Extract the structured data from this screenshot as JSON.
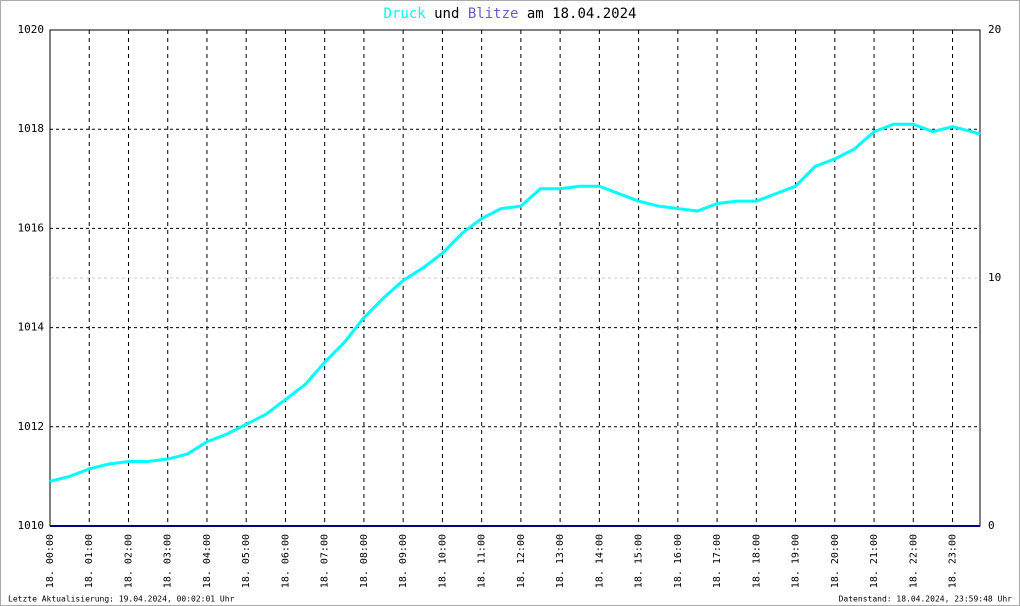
{
  "chart_data": {
    "type": "line",
    "title_parts": [
      {
        "text": "Druck",
        "color": "#00ffff"
      },
      {
        "text": "und",
        "color": "#000000"
      },
      {
        "text": "Blitze",
        "color": "#6a5acd"
      },
      {
        "text": "am 18.04.2024",
        "color": "#000000"
      }
    ],
    "xlim": [
      0,
      23.7
    ],
    "xticks": [
      {
        "value": 0,
        "label": "18. 00:00"
      },
      {
        "value": 1,
        "label": "18. 01:00"
      },
      {
        "value": 2,
        "label": "18. 02:00"
      },
      {
        "value": 3,
        "label": "18. 03:00"
      },
      {
        "value": 4,
        "label": "18. 04:00"
      },
      {
        "value": 5,
        "label": "18. 05:00"
      },
      {
        "value": 6,
        "label": "18. 06:00"
      },
      {
        "value": 7,
        "label": "18. 07:00"
      },
      {
        "value": 8,
        "label": "18. 08:00"
      },
      {
        "value": 9,
        "label": "18. 09:00"
      },
      {
        "value": 10,
        "label": "18. 10:00"
      },
      {
        "value": 11,
        "label": "18. 11:00"
      },
      {
        "value": 12,
        "label": "18. 12:00"
      },
      {
        "value": 13,
        "label": "18. 13:00"
      },
      {
        "value": 14,
        "label": "18. 14:00"
      },
      {
        "value": 15,
        "label": "18. 15:00"
      },
      {
        "value": 16,
        "label": "18. 16:00"
      },
      {
        "value": 17,
        "label": "18. 17:00"
      },
      {
        "value": 18,
        "label": "18. 18:00"
      },
      {
        "value": 19,
        "label": "18. 19:00"
      },
      {
        "value": 20,
        "label": "18. 20:00"
      },
      {
        "value": 21,
        "label": "18. 21:00"
      },
      {
        "value": 22,
        "label": "18. 22:00"
      },
      {
        "value": 23,
        "label": "18. 23:00"
      }
    ],
    "ylim": [
      1010,
      1020
    ],
    "yticks": [
      1010,
      1012,
      1014,
      1016,
      1018,
      1020
    ],
    "y2lim": [
      0,
      20
    ],
    "y2ticks": [
      0,
      10,
      20
    ],
    "grid": true,
    "series": [
      {
        "name": "Druck",
        "color": "#00ffff",
        "x": [
          0,
          0.5,
          1,
          1.5,
          2,
          2.5,
          3,
          3.5,
          4,
          4.5,
          5,
          5.5,
          6,
          6.5,
          7,
          7.5,
          8,
          8.5,
          9,
          9.5,
          10,
          10.5,
          11,
          11.5,
          12,
          12.5,
          13,
          13.5,
          14,
          14.5,
          15,
          15.5,
          16,
          16.5,
          17,
          17.5,
          18,
          18.5,
          19,
          19.5,
          20,
          20.5,
          21,
          21.5,
          22,
          22.5,
          23,
          23.5,
          23.7
        ],
        "values": [
          1010.9,
          1011.0,
          1011.15,
          1011.25,
          1011.3,
          1011.3,
          1011.35,
          1011.45,
          1011.7,
          1011.85,
          1012.05,
          1012.25,
          1012.55,
          1012.85,
          1013.3,
          1013.7,
          1014.2,
          1014.6,
          1014.95,
          1015.2,
          1015.5,
          1015.9,
          1016.2,
          1016.4,
          1016.45,
          1016.8,
          1016.8,
          1016.85,
          1016.85,
          1016.7,
          1016.55,
          1016.45,
          1016.4,
          1016.35,
          1016.5,
          1016.55,
          1016.55,
          1016.7,
          1016.85,
          1017.25,
          1017.4,
          1017.6,
          1017.95,
          1018.1,
          1018.1,
          1017.95,
          1018.05,
          1017.95,
          1017.9
        ]
      },
      {
        "name": "Blitze",
        "color": "#000080",
        "axis": "y2",
        "x": [
          0,
          23.7
        ],
        "values": [
          0,
          0
        ]
      }
    ],
    "footer_left": "Letzte Aktualisierung: 19.04.2024, 00:02:01 Uhr",
    "footer_right": "Datenstand: 18.04.2024, 23:59:48 Uhr"
  }
}
